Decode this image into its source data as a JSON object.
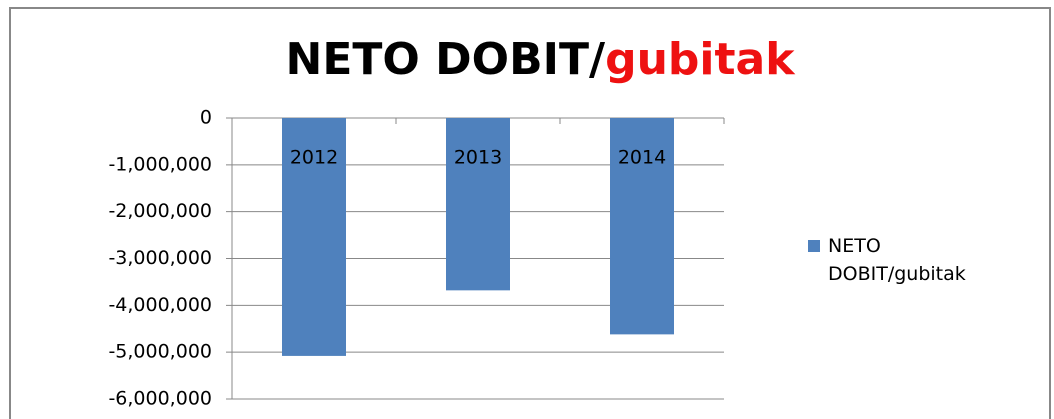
{
  "chart_data": {
    "type": "bar",
    "title_parts": [
      {
        "text": "NETO DOBIT/",
        "color": "#000000"
      },
      {
        "text": "gubitak",
        "color": "#ee1111"
      }
    ],
    "categories": [
      "2012",
      "2013",
      "2014"
    ],
    "series": [
      {
        "name": "NETO DOBIT/gubitak",
        "color": "#4f81bd",
        "values": [
          -5080000,
          -3680000,
          -4620000
        ]
      }
    ],
    "ylim": [
      -6000000,
      0
    ],
    "yticks": [
      0,
      {
        "value": -1000000,
        "label": "-1,000,000"
      },
      {
        "value": -2000000,
        "label": "-2,000,000"
      },
      {
        "value": -3000000,
        "label": "-3,000,000"
      },
      {
        "value": -4000000,
        "label": "-4,000,000"
      },
      {
        "value": -5000000,
        "label": "-5,000,000"
      },
      {
        "value": -6000000,
        "label": "-6,000,000"
      }
    ],
    "grid": true,
    "legend": "right"
  }
}
